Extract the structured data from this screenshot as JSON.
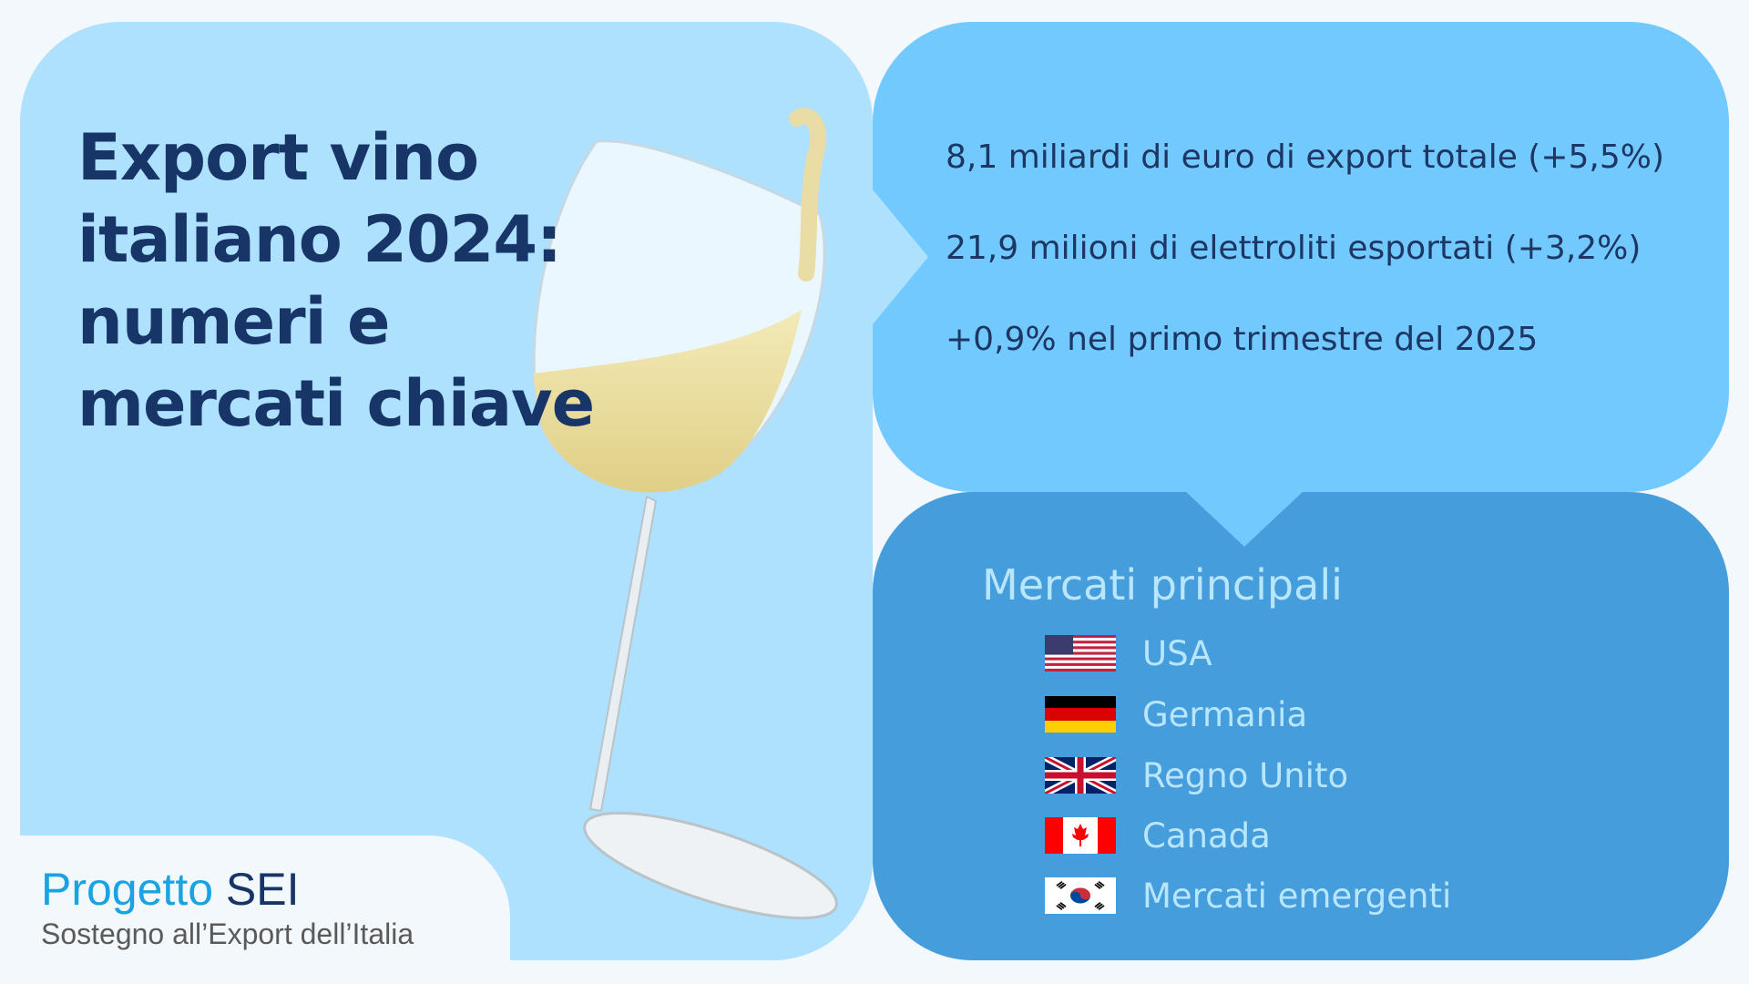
{
  "title": "Export vino italiano 2024: numeri e mercati chiave",
  "stats": [
    "8,1 miliardi di euro di export totale (+5,5%)",
    "21,9 milioni di elettroliti esportati (+3,2%)",
    "+0,9% nel primo trimestre del 2025"
  ],
  "markets": {
    "heading": "Mercati principali",
    "items": [
      {
        "label": "USA",
        "icon": "usa-flag-icon"
      },
      {
        "label": "Germania",
        "icon": "germany-flag-icon"
      },
      {
        "label": "Regno Unito",
        "icon": "uk-flag-icon"
      },
      {
        "label": "Canada",
        "icon": "canada-flag-icon"
      },
      {
        "label": "Mercati emergenti",
        "icon": "south-korea-flag-icon"
      }
    ]
  },
  "brand": {
    "name_light": "Progetto",
    "name_bold": "SEI",
    "tagline": "Sostegno all’Export dell’Italia"
  },
  "colors": {
    "left_panel": "#aee1fe",
    "stats_panel": "#72c9fe",
    "markets_panel": "#469ddc",
    "title": "#173567"
  }
}
